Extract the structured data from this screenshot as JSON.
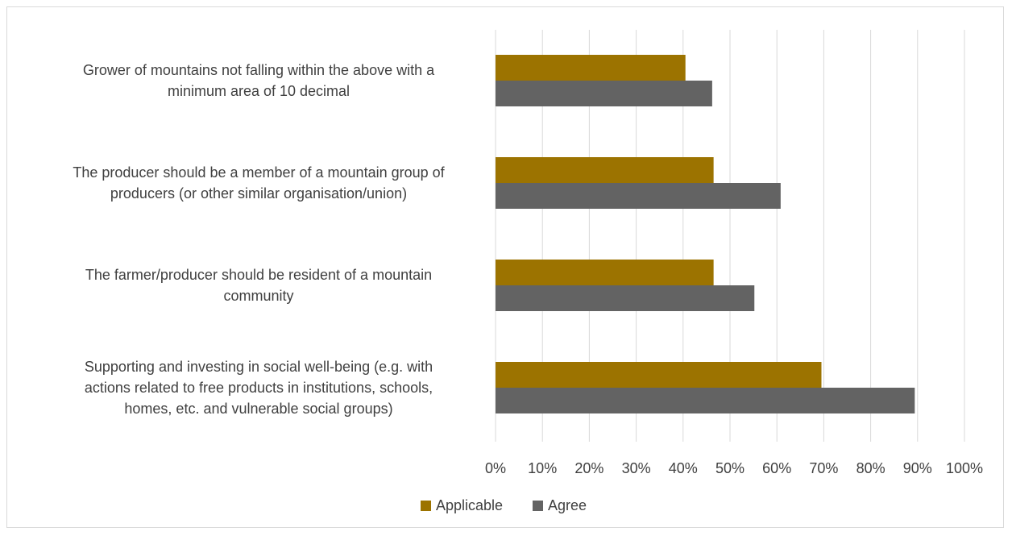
{
  "chart_data": {
    "type": "bar",
    "orientation": "horizontal",
    "categories": [
      [
        "Grower of mountains not falling within the above with a",
        "minimum area of 10 decimal"
      ],
      [
        "The producer should be a member of a mountain group of",
        "producers (or other similar organisation/union)"
      ],
      [
        "The farmer/producer should be resident of a mountain",
        "community"
      ],
      [
        "Supporting and investing in social well-being (e.g. with",
        "actions related to free products in institutions, schools,",
        "homes, etc. and vulnerable social groups)"
      ]
    ],
    "series": [
      {
        "name": "Applicable",
        "color": "#9c7300",
        "values": [
          40.5,
          46.5,
          46.5,
          69.5
        ]
      },
      {
        "name": "Agree",
        "color": "#636363",
        "values": [
          46.2,
          60.8,
          55.2,
          89.4
        ]
      }
    ],
    "xlim": [
      0,
      100
    ],
    "ticks": [
      "0%",
      "10%",
      "20%",
      "30%",
      "40%",
      "50%",
      "60%",
      "70%",
      "80%",
      "90%",
      "100%"
    ],
    "grid": true,
    "legend_position": "bottom"
  }
}
